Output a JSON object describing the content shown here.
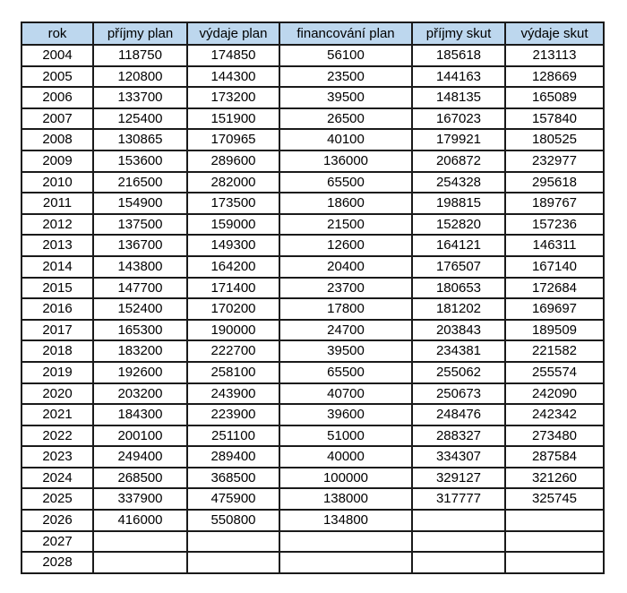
{
  "colors": {
    "header_bg": "#BDD7EE",
    "border": "#1a1a1a",
    "text": "#000000",
    "page_bg": "#ffffff"
  },
  "chart_data": {
    "type": "table",
    "columns": [
      "rok",
      "příjmy plan",
      "výdaje plan",
      "financování plan",
      "příjmy skut",
      "výdaje skut"
    ],
    "rows": [
      [
        "2004",
        "118750",
        "174850",
        "56100",
        "185618",
        "213113"
      ],
      [
        "2005",
        "120800",
        "144300",
        "23500",
        "144163",
        "128669"
      ],
      [
        "2006",
        "133700",
        "173200",
        "39500",
        "148135",
        "165089"
      ],
      [
        "2007",
        "125400",
        "151900",
        "26500",
        "167023",
        "157840"
      ],
      [
        "2008",
        "130865",
        "170965",
        "40100",
        "179921",
        "180525"
      ],
      [
        "2009",
        "153600",
        "289600",
        "136000",
        "206872",
        "232977"
      ],
      [
        "2010",
        "216500",
        "282000",
        "65500",
        "254328",
        "295618"
      ],
      [
        "2011",
        "154900",
        "173500",
        "18600",
        "198815",
        "189767"
      ],
      [
        "2012",
        "137500",
        "159000",
        "21500",
        "152820",
        "157236"
      ],
      [
        "2013",
        "136700",
        "149300",
        "12600",
        "164121",
        "146311"
      ],
      [
        "2014",
        "143800",
        "164200",
        "20400",
        "176507",
        "167140"
      ],
      [
        "2015",
        "147700",
        "171400",
        "23700",
        "180653",
        "172684"
      ],
      [
        "2016",
        "152400",
        "170200",
        "17800",
        "181202",
        "169697"
      ],
      [
        "2017",
        "165300",
        "190000",
        "24700",
        "203843",
        "189509"
      ],
      [
        "2018",
        "183200",
        "222700",
        "39500",
        "234381",
        "221582"
      ],
      [
        "2019",
        "192600",
        "258100",
        "65500",
        "255062",
        "255574"
      ],
      [
        "2020",
        "203200",
        "243900",
        "40700",
        "250673",
        "242090"
      ],
      [
        "2021",
        "184300",
        "223900",
        "39600",
        "248476",
        "242342"
      ],
      [
        "2022",
        "200100",
        "251100",
        "51000",
        "288327",
        "273480"
      ],
      [
        "2023",
        "249400",
        "289400",
        "40000",
        "334307",
        "287584"
      ],
      [
        "2024",
        "268500",
        "368500",
        "100000",
        "329127",
        "321260"
      ],
      [
        "2025",
        "337900",
        "475900",
        "138000",
        "317777",
        "325745"
      ],
      [
        "2026",
        "416000",
        "550800",
        "134800",
        "",
        ""
      ],
      [
        "2027",
        "",
        "",
        "",
        "",
        ""
      ],
      [
        "2028",
        "",
        "",
        "",
        "",
        ""
      ]
    ]
  }
}
